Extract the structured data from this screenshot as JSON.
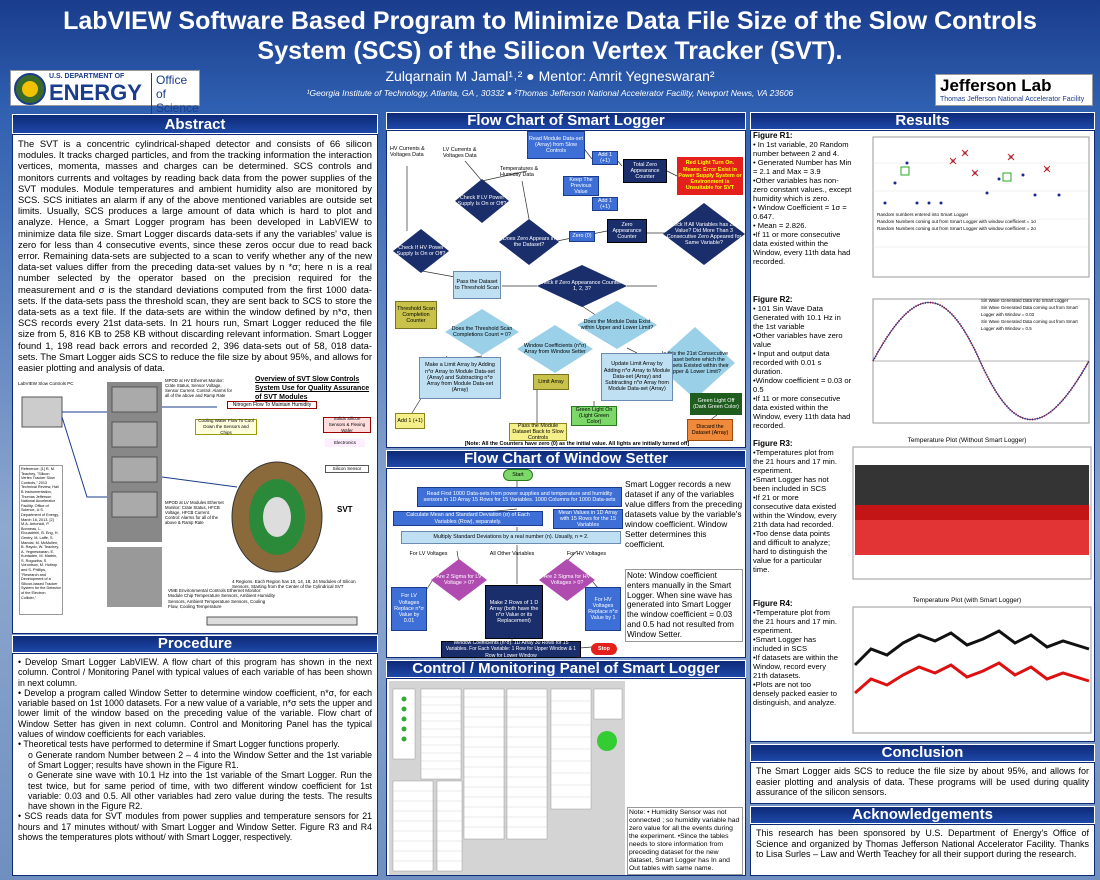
{
  "header": {
    "title": "LabVIEW Software Based Program to Minimize Data File Size of the Slow Controls System (SCS) of the Silicon Vertex Tracker (SVT).",
    "authors": "Zulqarnain M Jamal¹˒² ● Mentor: Amrit Yegneswaran²",
    "affiliations": "¹Georgia Institute of Technology, Atlanta, GA , 30332 ● ²Thomas Jefferson National Accelerator Facility, Newport News, VA 23606",
    "doe_top": "U.S. DEPARTMENT OF",
    "doe_main": "ENERGY",
    "doe_office": "Office of Science",
    "jlab_main": "Jefferson Lab",
    "jlab_sub": "Thomas Jefferson National Accelerator Facility"
  },
  "abstract": {
    "heading": "Abstract",
    "text": "The SVT is a concentric cylindrical-shaped detector and consists of 66 silicon modules. It tracks charged particles, and from the tracking information the interaction vertices, momenta, masses and charges can be determined. SCS controls and monitors currents and voltages by reading back data from the power supplies of the SVT modules. Module temperatures and ambient humidity also are monitored by SCS. SCS initiates an alarm if any of the above mentioned variables are outside set limits. Usually, SCS produces a large amount of data which is hard to plot and analyze. Hence, a Smart Logger program has been developed in LabVIEW to minimize data file size. Smart Logger discards data-sets if any the variables' value is zero for less than 4 consecutive events, since these zeros occur due to read back error. Remaining data-sets are subjected to a scan to verify whether any of the new data-set values differ from the preceding data-set values by n *σ; here n is a real number selected by the operator based on the precision required for the measurement and σ is the standard deviations computed from the first 1000 data-sets. If the data-sets pass the threshold scan, they are sent back to SCS to store the data-sets as a text file. If the data-sets are within the window defined by n*σ, then SCS records every 21st data-sets. In 21 hours run, Smart Logger reduced the file size from 5, 816 KB to 258 KB without discarding relevant information. Smart Logger found 1, 198 read back errors and recorded 2, 396 data-sets out of 58, 018 data-sets. The Smart Logger aids SCS to reduce the file size by about 95%, and allows for easier plotting and analysis of data.",
    "diagram_title": "Overview of SVT Slow Controls System Use for Quality Assurance of SVT Modules",
    "diagram_labels": [
      "LabVIEW Slow Controls PC",
      "MPOD at HV Ethernet Monitor: Crate Status, Sensor Voltage, Sensor Current. Control: Alarms for all of the above and Ramp Rate",
      "Nitrogen Flow To Maintain Humidity",
      "Cooling Water Flow To Cool Down the Sensors and Chips",
      "Solids Silicon Sensors & Flexing Wafer",
      "Electronics",
      "Silicon Sensor",
      "SVT",
      "MPOD at LV Modules Ethernet Monitor: Crate Status, HFCB Voltage, HFCB Current. Control: Alarms for all of the above & Ramp Rate",
      "4 Regions. Each Region has 10, 14, 18, 24 Modules of Silicon Sensors, Starting from the Center of the Cylindrical SVT",
      "VME Environmental Controls Ethernet Monitor: Module Chip Temperature Sensors, Ambient Humidity Sensors, Ambient Temperature Sensors, Cooling Flow, Cooling Temperature",
      "Reference: [1] R. M. Teachey, \"Silicon Vertex Tracker Slow Controls,\" 2013 Technical Review, Hall B Instrumentation, Thomas Jefferson National Accelerator Facility, Office of Science, U.S. Department of Energy, March 16, 2013. [2] M.A. Antonioli, P. Bonneau, L. Elouadrhiri, B. Eng, H. Gentry, M. Laffe, S. Mandal, M. McMullen, B. Raydo, W. Teachey, A. Yegneswaran, E. Kuntaden, M. Marbin, S. Rogoziba, S. Vorontsov, M. Holtrop and S. Phillips, \"Research and Development of a Silicon-based Tracker System for the Detector of the Electron Collider,\""
    ]
  },
  "procedure": {
    "heading": "Procedure",
    "items": [
      "• Develop Smart Logger LabVIEW. A flow chart of this program has shown in the next column. Control / Monitoring Panel with typical values of each variable of has been shown in next column.",
      "• Develop a program called Window Setter to determine window coefficient, n*σ, for each variable based on 1st 1000 datasets. For a new value of a variable, n*σ sets the upper and lower limit of the window based on the preceding value of the variable. Flow chart of Window Setter has given in next column. Control and Monitoring Panel has the typical values of window coefficients for each variables.",
      "• Theoretical tests have performed to determine if Smart Logger functions properly.",
      "o Generate random Number between 2 – 4 into the Window Setter and the 1st variable of Smart Logger; results have shown in the Figure R1.",
      "o Generate sine wave with 10.1 Hz into the 1st variable of the Smart Logger. Run the test twice, but for same period of time, with two different window coefficient for 1st variable: 0.03 and 0.5. All other variables had zero value during the tests. The results have shown in the Figure R2.",
      "• SCS reads data for SVT modules from power supplies and temperature sensors for 21 hours and 17 minutes without/ with Smart Logger and Window Setter. Figure R3 and R4 shows the temperatures plots without/ with Smart Logger, respectively."
    ]
  },
  "smart_logger": {
    "heading": "Flow Chart of Smart Logger",
    "nodes": [
      "HV Currents & Voltages Data",
      "LV Currents & Voltages Data",
      "Read Module Data-set (Array) from Slow Controls",
      "Temperatures & Humidity Data",
      "Add 1 (+1)",
      "Keep The Previous Value",
      "Total Zero Appearance Counter",
      "Red Light Turn On. Means: Error Exist in Power Supply System or Environment is Unsuitable for SVT",
      "Check If LV Power Supply Is On or Off?",
      "Does Zero Appears in the Dataset?",
      "Add 1 (+1)",
      "Zero Appearance Counter",
      "Zero (0)",
      "Check If All Variables has Zero Value? Did More Than 3 Consecutive Zero Appeared for Same Variable?",
      "Check If HV Power Supply Is On or Off?",
      "Pass the Dataset to Threshold Scan",
      "Check if Zero Appearance Counter = 1, 2, 3?",
      "Threshold Scan Completion Counter",
      "Does the Threshold Scan Completions Count = 0?",
      "Window Coefficients (n*σ) Array from Window Setter",
      "Does the Module Data Exist within Upper and Lower Limit?",
      "Is this the 21st Consecutive Dataset before which the Datasets Existed within their Upper & Lower Limit?",
      "Make a Limit Array by Adding n*σ Array to Module Data-set (Array) and Subtracting n*σ Array from Module Data-set (Array)",
      "Update Limit Array by Adding n*σ Array to Module Data-set (Array) and Subtracting n*σ Array from Module Data-set (Array)",
      "Limit Array",
      "Green Light On (Light Green Color)",
      "Green Light Off (Dark Green Color)",
      "Pass the Module Dataset Back to Slow Controls",
      "Discard the Dataset (Array)",
      "Add 1 (+1)"
    ],
    "note": "[Note: All the Counters have zero (0) as the initial value. All lights are initially turned off]"
  },
  "window_setter": {
    "heading": "Flow Chart of Window Setter",
    "nodes": [
      "Start",
      "Read First 1000 Data-sets from power supplies and temperature and humidity sensors in 1D Array 15 Rows for 15 Variables. 1000 Columns for 1000 Data-sets",
      "Calculate Mean and Standard Deviation (σ) of Each Variables (Row), separately.",
      "Mean Values in 1D Array with 15 Rows for the 15 Variables",
      "Multiply Standard Deviations by a real number (n). Usually, n = 2.",
      "For LV Voltages",
      "All Other Variables",
      "For HV Voltages",
      "Are 2 Sigma for LV Voltage > 0?",
      "Make 2 Rows of 1 D Array (both have the n*σ Value or its Replacement)",
      "Are 2 Sigma for HV Voltages > 0?",
      "For LV Voltages Replace n*σ Value by 0.01",
      "For HV Voltages Replace n*σ Value by 1",
      "Window Coefficients (n*σ): 1D Array 30 Rows for 15 Variables. For Each Variable: 1 Row for Upper Window & 1 Row for Lower Window",
      "Stop"
    ],
    "description": "Smart Logger records a new dataset if any of the variables value differs from the preceding datasets value by the variable's window coefficient. Window Setter determines this coefficient.",
    "note": "Note: Window coefficient enters manually in the Smart Logger. When sine wave has generated into Smart Logger the window coefficient = 0.03 and 0.5 had not resulted from Window Setter."
  },
  "panel": {
    "heading": "Control / Monitoring Panel of Smart Logger",
    "note": "Note: • Humidity Sensor was not connected ; so humidity variable had zero value for all the events during the experiment. •Since the tables needs to store information from preceding dataset for the new dataset, Smart Logger has In and Out tables with same name."
  },
  "results": {
    "heading": "Results",
    "figures": [
      {
        "label": "Figure R1:",
        "text": [
          "• In 1st variable, 20 Random number between 2 and 4.",
          "• Generated Number has Min = 2.1 and Max = 3.9",
          "•Other variables has non-zero constant values., except humidity which is zero.",
          "• Window Coefficient = 1σ = 0.647.",
          "• Mean = 2.826.",
          "•If 11 or more consecutive data existed within the Window, every 11th data had recorded."
        ],
        "plot": "",
        "legend": [
          "Random numbers entered into Smart Logger",
          "Random Numbers coming out from Smart Logger with window coefficient = 1σ",
          "Random Numbers coming out from Smart Logger with window coefficient = 2σ"
        ]
      },
      {
        "label": "Figure R2:",
        "text": [
          "• 101 Sin Wave Data Generated with 10.1 Hz in the 1st variable",
          "•Other variables have zero value",
          "• Input and output data recorded with 0.01 s duration.",
          "•Window coefficient = 0.03 or 0.5",
          "•If 11 or more consecutive data existed within the Window, every 11th data had recorded."
        ],
        "plot": "",
        "legend": [
          "Sin Wave Generated Data into Smart Logger",
          "Sin Wave Generated Data coming out from Smart Logger with Window = 0.03",
          "Sin Wave Generated Data coming out from Smart Logger with Window = 0.5"
        ]
      },
      {
        "label": "Figure R3:",
        "text": [
          "•Temperatures plot from the 21 hours and 17 min. experiment.",
          "•Smart Logger has not been included in SCS",
          "•If 21 or more consecutive data existed within the Window, every 21th data had recorded.",
          "•Too dense data points and difficult to analyze; hard to distinguish the value for a particular time."
        ],
        "plot": "Temperature Plot (Without Smart Logger)",
        "legend": []
      },
      {
        "label": "Figure R4:",
        "text": [
          "•Temperature plot from the 21 hours and 17 min. experiment.",
          "•Smart Logger has included in SCS",
          "•If datasets are within the Window, record every 21th datasets.",
          "•Plots are not too densely packed easier to distinguish, and analyze."
        ],
        "plot": "Temperature Plot (with Smart Logger)",
        "legend": []
      }
    ]
  },
  "conclusion": {
    "heading": "Conclusion",
    "text": "The Smart Logger aids SCS to reduce the file size by about 95%, and allows for easier plotting and analysis of data. These programs will be used during quality assurance of the silicon sensors."
  },
  "acknowledgements": {
    "heading": "Acknowledgements",
    "text": "This research has been sponsored by U.S. Department of Energy's Office of Science and organized by Thomas Jefferson National Accelerator Facility. Thanks to Lisa Surles – Law and Werth Teachey for all their support during the research."
  }
}
